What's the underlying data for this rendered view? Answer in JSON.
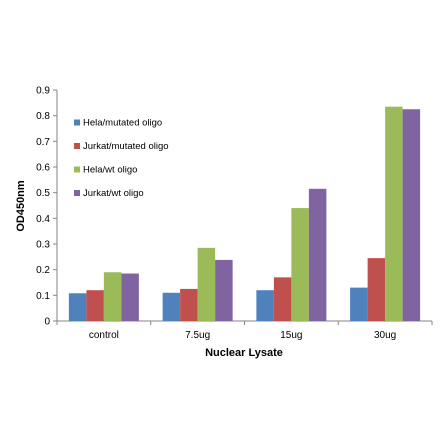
{
  "chart_data": {
    "type": "bar",
    "title": "",
    "xlabel": "Nuclear Lysate",
    "ylabel": "OD450nm",
    "ylim": [
      0,
      0.9
    ],
    "yticks": [
      0,
      0.1,
      0.2,
      0.3,
      0.4,
      0.5,
      0.6,
      0.7,
      0.8,
      0.9
    ],
    "ytick_labels": [
      "0",
      "0.1",
      "0.2",
      "0.3",
      "0.4",
      "0.5",
      "0.6",
      "0.7",
      "0.8",
      "0.9"
    ],
    "grid": false,
    "legend_position": "top-left",
    "categories": [
      "control",
      "7.5ug",
      "15ug",
      "30ug"
    ],
    "series": [
      {
        "name": "Hela/mutated oligo",
        "color": "#4F81BD",
        "values": [
          0.108,
          0.11,
          0.12,
          0.13
        ]
      },
      {
        "name": "Jurkat/mutated oligo",
        "color": "#C0504D",
        "values": [
          0.12,
          0.125,
          0.17,
          0.245
        ]
      },
      {
        "name": "Hela/wt oligo",
        "color": "#9BBB59",
        "values": [
          0.19,
          0.285,
          0.44,
          0.835
        ]
      },
      {
        "name": "Jurkat/wt oligo",
        "color": "#8064A2",
        "values": [
          0.185,
          0.238,
          0.515,
          0.825
        ]
      }
    ]
  }
}
